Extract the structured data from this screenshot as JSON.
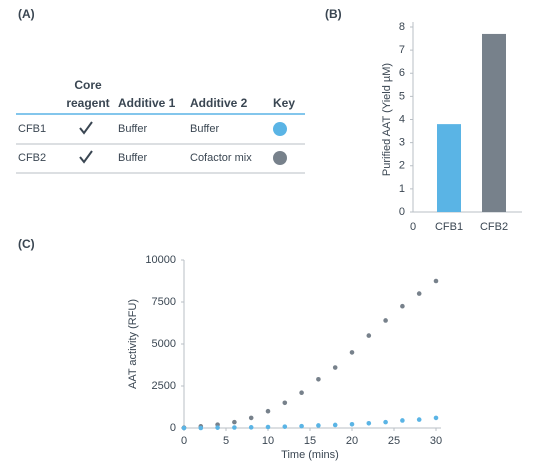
{
  "table": {
    "panel_label": "(A)",
    "header": [
      "Core reagent",
      "Additive 1",
      "Additive 2",
      "Key"
    ],
    "rows": [
      {
        "label": "CFB1",
        "additive_1": "Buffer",
        "additive_2": "Buffer",
        "key_color": "#5ab4e5"
      },
      {
        "label": "CFB2",
        "additive_1": "Buffer",
        "additive_2": "Cofactor mix",
        "key_color": "#77818b"
      }
    ]
  },
  "chart_data": [
    {
      "type": "bar",
      "panel_label": "(B)",
      "ylabel": "Purified AAT (Yield µM)",
      "x_origin_label": "0",
      "categories": [
        "CFB1",
        "CFB2"
      ],
      "values": [
        3.8,
        7.7
      ],
      "colors": [
        "#5ab4e5",
        "#77818b"
      ],
      "ylim": [
        0,
        8
      ],
      "yticks": [
        0,
        1,
        2,
        3,
        4,
        5,
        6,
        7,
        8
      ]
    },
    {
      "type": "scatter",
      "panel_label": "(C)",
      "xlabel": "Time (mins)",
      "ylabel": "AAT activity (RFU)",
      "x": [
        0,
        2,
        4,
        6,
        8,
        10,
        12,
        14,
        16,
        18,
        20,
        22,
        24,
        26,
        28,
        30
      ],
      "series": [
        {
          "color": "#77818b",
          "values": [
            20,
            100,
            200,
            350,
            600,
            1000,
            1500,
            2100,
            2900,
            3600,
            4500,
            5500,
            6400,
            7250,
            8000,
            8750
          ]
        },
        {
          "color": "#5ab4e5",
          "values": [
            0,
            0,
            20,
            30,
            40,
            60,
            80,
            110,
            150,
            180,
            220,
            280,
            350,
            450,
            500,
            600
          ]
        }
      ],
      "xlim": [
        0,
        30
      ],
      "xticks": [
        0,
        5,
        10,
        15,
        20,
        25,
        30
      ],
      "ylim": [
        0,
        10000
      ],
      "yticks": [
        0,
        2500,
        5000,
        7500,
        10000
      ]
    }
  ]
}
